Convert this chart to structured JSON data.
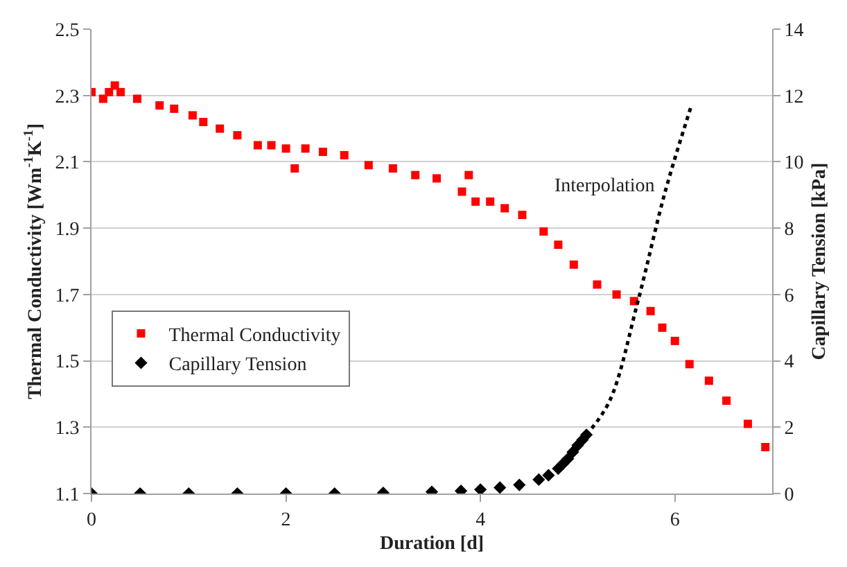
{
  "chart_data": {
    "type": "scatter",
    "xlabel": "Duration [d]",
    "ylabel": "Thermal Conductivity [Wm$^{-1}$K$^{-1}$]",
    "y2label": "Capillary Tension [kPa]",
    "xlim": [
      0,
      7
    ],
    "xticks": [
      0,
      2,
      4,
      6
    ],
    "ylim": [
      1.1,
      2.5
    ],
    "yticks": [
      1.1,
      1.3,
      1.5,
      1.7,
      1.9,
      2.1,
      2.3,
      2.5
    ],
    "y2lim": [
      0,
      14
    ],
    "y2ticks": [
      0,
      2,
      4,
      6,
      8,
      10,
      12,
      14
    ],
    "grid": "y",
    "legend": "bottom left",
    "series": [
      {
        "name": "Thermal Conductivity",
        "color": "#ff0000",
        "marker": "square",
        "x": [
          0,
          0.12,
          0.18,
          0.24,
          0.3,
          0.47,
          0.7,
          0.85,
          1.04,
          1.15,
          1.32,
          1.5,
          1.71,
          1.85,
          2.0,
          2.09,
          2.2,
          2.38,
          2.6,
          2.85,
          3.1,
          3.33,
          3.55,
          3.81,
          3.88,
          3.95,
          4.1,
          4.25,
          4.43,
          4.65,
          4.8,
          4.96,
          5.2,
          5.4,
          5.58,
          5.75,
          5.87,
          6.0,
          6.15,
          6.35,
          6.53,
          6.75,
          6.93
        ],
        "values": [
          2.31,
          2.29,
          2.31,
          2.33,
          2.31,
          2.29,
          2.27,
          2.26,
          2.24,
          2.22,
          2.2,
          2.18,
          2.15,
          2.15,
          2.14,
          2.08,
          2.14,
          2.13,
          2.12,
          2.09,
          2.08,
          2.06,
          2.05,
          2.01,
          2.06,
          1.98,
          1.98,
          1.96,
          1.94,
          1.89,
          1.85,
          1.79,
          1.73,
          1.7,
          1.68,
          1.65,
          1.6,
          1.56,
          1.49,
          1.44,
          1.38,
          1.31,
          1.24
        ]
      },
      {
        "name": "Capillary Tension",
        "color": "#000000",
        "marker": "diamond",
        "axis": "y2",
        "x": [
          0,
          0.5,
          1,
          1.5,
          2,
          2.5,
          3,
          3.5,
          3.8,
          4.0,
          4.2,
          4.4,
          4.6,
          4.7,
          4.8,
          4.85,
          4.9,
          4.95,
          5.0,
          5.05,
          5.09
        ],
        "values": [
          0,
          0,
          0,
          0,
          0,
          0,
          0.02,
          0.05,
          0.08,
          0.12,
          0.18,
          0.26,
          0.42,
          0.55,
          0.75,
          0.9,
          1.05,
          1.25,
          1.45,
          1.62,
          1.77
        ]
      },
      {
        "type": "line",
        "color": "#000000",
        "line_style": "dotted",
        "axis": "y2",
        "x": [
          5.09,
          5.33,
          5.62,
          5.9,
          6.17
        ],
        "values": [
          1.77,
          2.8,
          5.8,
          9.1,
          11.7
        ]
      }
    ],
    "annotations": [
      "Interpolation"
    ]
  }
}
